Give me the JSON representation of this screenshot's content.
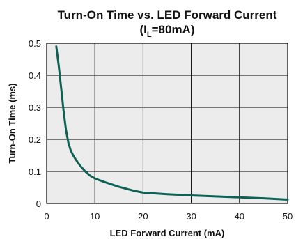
{
  "chart_data": {
    "type": "line",
    "title": "Turn-On Time vs. LED Forward Current",
    "subtitle": {
      "open": "(I",
      "sub": "L",
      "rest": "=80mA)"
    },
    "xlabel": "LED Forward Current (mA)",
    "ylabel": "Turn-On Time (ms)",
    "xlim": [
      0,
      50
    ],
    "ylim": [
      0,
      0.5
    ],
    "xticks": [
      0,
      10,
      20,
      30,
      40,
      50
    ],
    "yticks": [
      0,
      0.1,
      0.2,
      0.3,
      0.4,
      0.5
    ],
    "xtick_labels": [
      "0",
      "10",
      "20",
      "30",
      "40",
      "50"
    ],
    "ytick_labels": [
      "0",
      "0.1",
      "0.2",
      "0.3",
      "0.4",
      "0.5"
    ],
    "grid": true,
    "series": [
      {
        "color": "#0e6155",
        "x": [
          2,
          2.5,
          3,
          3.5,
          4,
          4.5,
          5,
          5.5,
          6,
          7,
          8,
          9,
          10,
          12,
          15,
          18,
          20,
          25,
          30,
          35,
          40,
          45,
          50
        ],
        "y": [
          0.49,
          0.43,
          0.36,
          0.29,
          0.23,
          0.19,
          0.165,
          0.15,
          0.138,
          0.117,
          0.1,
          0.087,
          0.078,
          0.067,
          0.052,
          0.04,
          0.034,
          0.029,
          0.025,
          0.022,
          0.019,
          0.016,
          0.012
        ]
      }
    ]
  }
}
